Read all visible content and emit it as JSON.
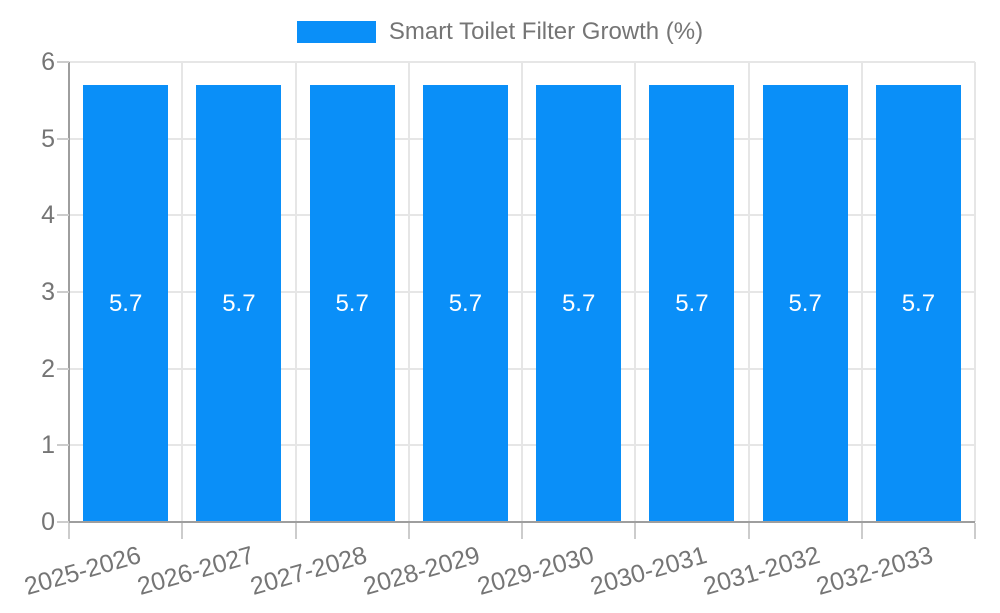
{
  "chart_data": {
    "type": "bar",
    "title": "Smart Toilet Filter Growth (%)",
    "categories": [
      "2025-2026",
      "2026-2027",
      "2027-2028",
      "2028-2029",
      "2029-2030",
      "2030-2031",
      "2031-2032",
      "2032-2033"
    ],
    "values": [
      5.7,
      5.7,
      5.7,
      5.7,
      5.7,
      5.7,
      5.7,
      5.7
    ],
    "bar_labels": [
      "5.7",
      "5.7",
      "5.7",
      "5.7",
      "5.7",
      "5.7",
      "5.7",
      "5.7"
    ],
    "xlabel": "",
    "ylabel": "",
    "ylim": [
      0,
      6
    ],
    "yticks": [
      "0",
      "1",
      "2",
      "3",
      "4",
      "5",
      "6"
    ],
    "grid": true,
    "legend_position": "top-center",
    "colors": {
      "bar": "#0a8ff8",
      "bar_label_text": "#ffffff",
      "axis_text": "#757575",
      "legend_text": "#757575",
      "axis_line": "#9e9e9e",
      "tick_line": "#cccccc",
      "gridline": "#e6e6e6",
      "background": "#ffffff"
    }
  }
}
